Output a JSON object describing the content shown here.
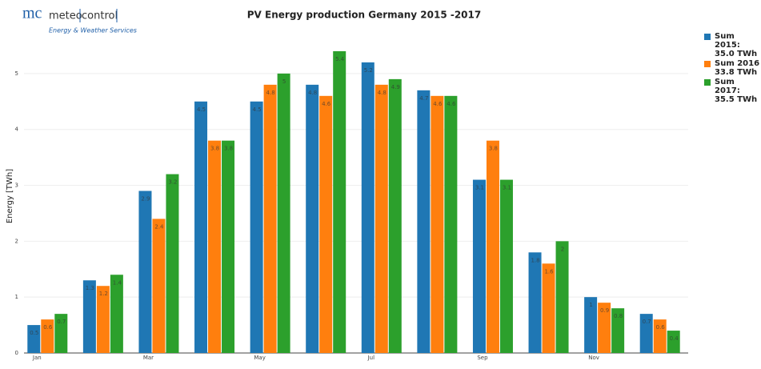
{
  "logo": {
    "mark": "mc",
    "brand_left": "meteo",
    "brand_right": "control",
    "tagline": "Energy & Weather Services"
  },
  "chart_data": {
    "type": "bar",
    "title": "PV Energy production Germany 2015 -2017",
    "y_label": "Energy [TWh]",
    "categories": [
      "Jan",
      null,
      "Mar",
      null,
      "May",
      null,
      "Jul",
      null,
      "Sep",
      null,
      "Nov",
      null
    ],
    "series": [
      {
        "name": "Sum 2015: 35.0 TWh",
        "color": "#1f77b4",
        "values": [
          0.5,
          1.3,
          2.9,
          4.5,
          4.5,
          4.8,
          5.2,
          4.7,
          3.1,
          1.8,
          1.0,
          0.7
        ]
      },
      {
        "name": "Sum 2016 33.8 TWh",
        "color": "#ff7f0e",
        "values": [
          0.6,
          1.2,
          2.4,
          3.8,
          4.8,
          4.6,
          4.8,
          4.6,
          3.8,
          1.6,
          0.9,
          0.6
        ]
      },
      {
        "name": "Sum 2017: 35.5 TWh",
        "color": "#2ca02c",
        "values": [
          0.7,
          1.4,
          3.2,
          3.8,
          5,
          5.4,
          4.9,
          4.6,
          3.1,
          2,
          0.8,
          0.4
        ]
      }
    ],
    "ylim": [
      0,
      5.6
    ],
    "yticks": [
      0,
      1,
      2,
      3,
      4,
      5
    ],
    "grid": true,
    "legend": "right"
  }
}
